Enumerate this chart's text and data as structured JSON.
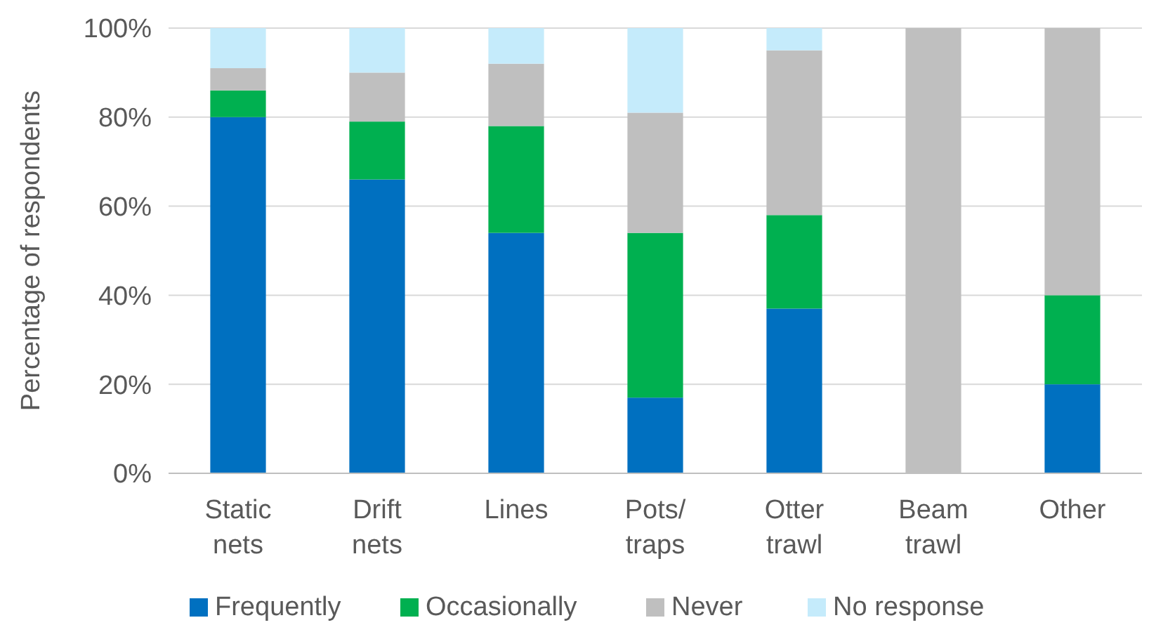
{
  "chart_data": {
    "type": "bar",
    "stacked": true,
    "ylabel": "Percentage of respondents",
    "categories": [
      "Static nets",
      "Drift nets",
      "Lines",
      "Pots/ traps",
      "Otter trawl",
      "Beam trawl",
      "Other"
    ],
    "series": [
      {
        "name": "Frequently",
        "color": "#0070c0",
        "values": [
          80,
          66,
          54,
          17,
          37,
          0,
          20
        ]
      },
      {
        "name": "Occasionally",
        "color": "#00b050",
        "values": [
          6,
          13,
          24,
          37,
          21,
          0,
          20
        ]
      },
      {
        "name": "Never",
        "color": "#bfbfbf",
        "values": [
          5,
          11,
          14,
          27,
          37,
          100,
          60
        ]
      },
      {
        "name": "No response",
        "color": "#c5ebfb",
        "values": [
          9,
          10,
          8,
          19,
          5,
          0,
          0
        ]
      }
    ],
    "ylim": [
      0,
      100
    ],
    "yticks": [
      {
        "value": 0,
        "label": "0%"
      },
      {
        "value": 20,
        "label": "20%"
      },
      {
        "value": 40,
        "label": "40%"
      },
      {
        "value": 60,
        "label": "60%"
      },
      {
        "value": 80,
        "label": "80%"
      },
      {
        "value": 100,
        "label": "100%"
      }
    ],
    "grid": "y",
    "legend": "bottom"
  }
}
